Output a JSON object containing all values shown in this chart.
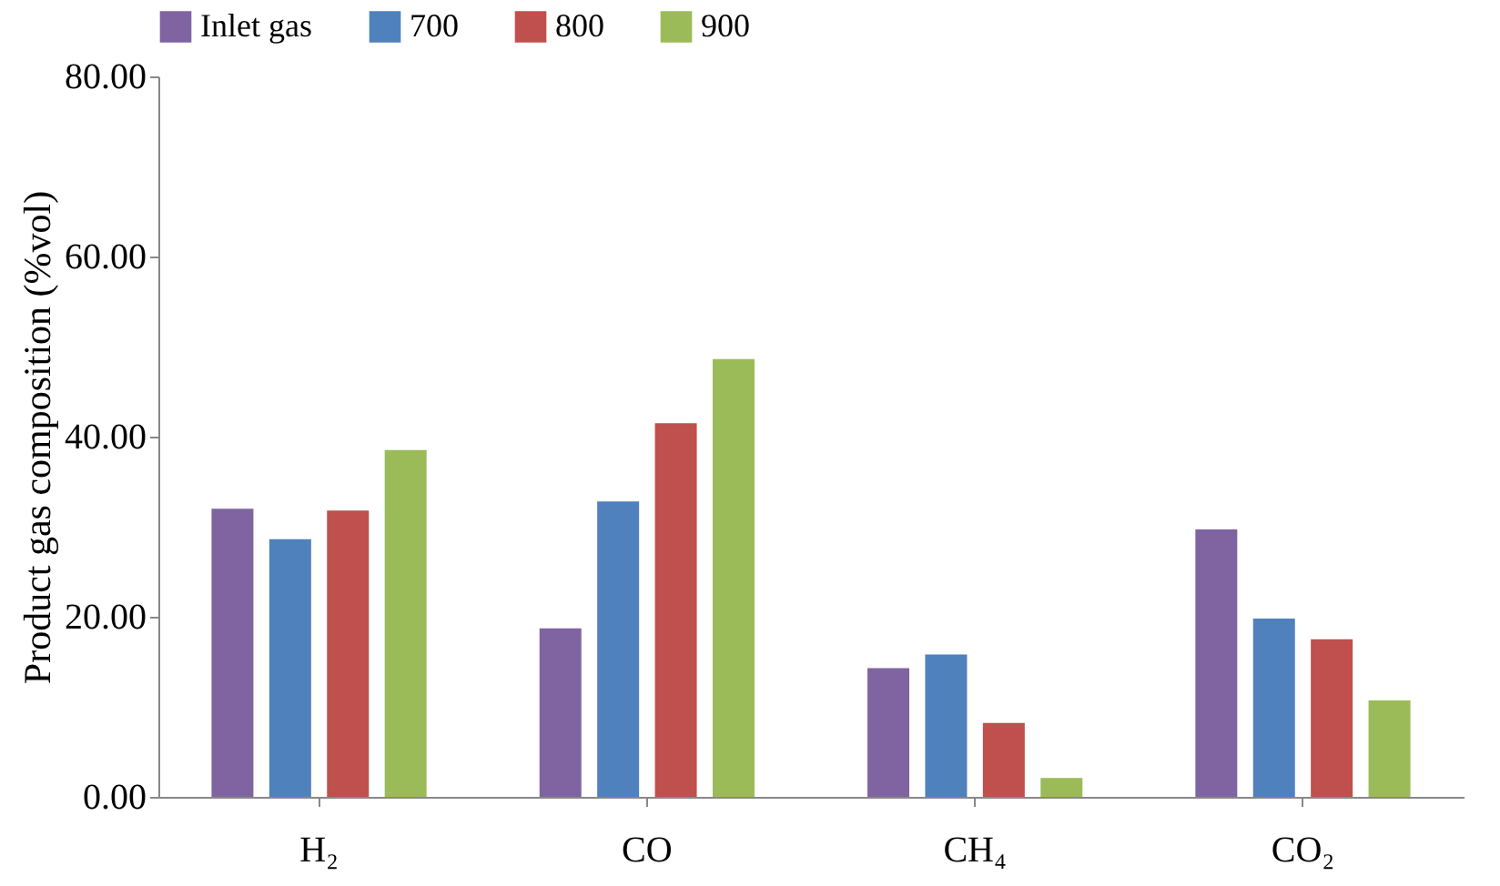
{
  "chart_data": {
    "type": "bar",
    "ylabel": "Product gas composition (%vol)",
    "categories": [
      "H₂",
      "CO",
      "CH₄",
      "CO₂"
    ],
    "series": [
      {
        "name": "Inlet gas",
        "color": "#8064a2",
        "values": [
          32.0,
          18.7,
          14.3,
          29.7
        ]
      },
      {
        "name": "700",
        "color": "#4f81bd",
        "values": [
          28.6,
          32.8,
          15.8,
          19.8
        ]
      },
      {
        "name": "800",
        "color": "#c0504d",
        "values": [
          31.8,
          41.5,
          8.2,
          17.5
        ]
      },
      {
        "name": "900",
        "color": "#9bbb59",
        "values": [
          38.5,
          48.6,
          2.1,
          10.7
        ]
      }
    ],
    "ylim": [
      0,
      80
    ],
    "yticks": [
      {
        "value": 0,
        "label": "0.00"
      },
      {
        "value": 20,
        "label": "20.00"
      },
      {
        "value": 40,
        "label": "40.00"
      },
      {
        "value": 60,
        "label": "60.00"
      },
      {
        "value": 80,
        "label": "80.00"
      }
    ],
    "grid": false,
    "legend": "top"
  }
}
